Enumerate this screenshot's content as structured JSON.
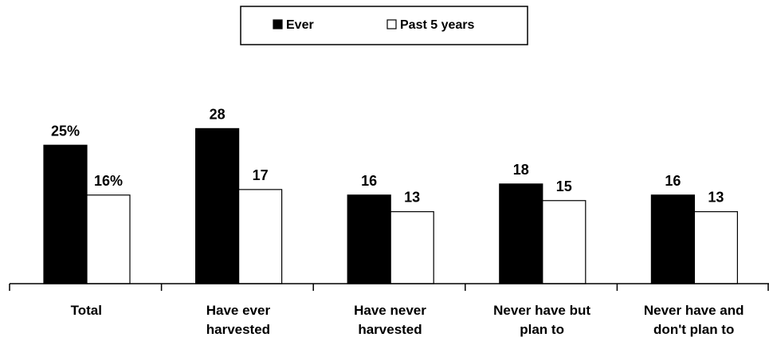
{
  "chart_data": {
    "type": "bar",
    "categories": [
      [
        "Total"
      ],
      [
        "Have ever",
        "harvested"
      ],
      [
        "Have never",
        "harvested"
      ],
      [
        "Never have but",
        "plan to"
      ],
      [
        "Never have and",
        "don't plan to"
      ]
    ],
    "series": [
      {
        "name": "Ever",
        "values": [
          25,
          28,
          16,
          18,
          16
        ],
        "labels": [
          "25%",
          "28",
          "16",
          "18",
          "16"
        ],
        "color": "#000000"
      },
      {
        "name": "Past 5 years",
        "values": [
          16,
          17,
          13,
          15,
          13
        ],
        "labels": [
          "16%",
          "17",
          "13",
          "15",
          "13"
        ],
        "color": "#ffffff"
      }
    ],
    "ylim": [
      0,
      35
    ],
    "grid": false,
    "legend_position": "top-center",
    "title": "",
    "xlabel": "",
    "ylabel": ""
  }
}
